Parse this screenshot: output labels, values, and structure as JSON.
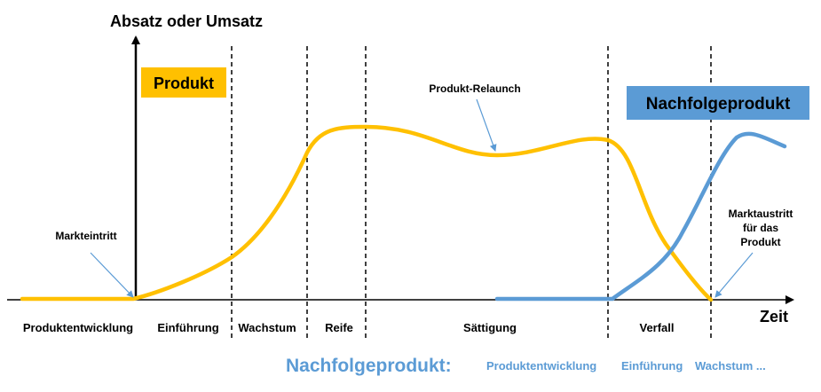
{
  "axis": {
    "y_label": "Absatz oder Umsatz",
    "x_label": "Zeit"
  },
  "labels": {
    "produkt": "Produkt",
    "nachfolgeprodukt": "Nachfolgeprodukt",
    "relaunch": "Produkt-Relaunch",
    "markteintritt": "Markteintritt",
    "marktaustritt_1": "Marktaustritt",
    "marktaustritt_2": "für das",
    "marktaustritt_3": "Produkt"
  },
  "phases": [
    "Produktentwicklung",
    "Einführung",
    "Wachstum",
    "Reife",
    "Sättigung",
    "Verfall"
  ],
  "successor_phases": {
    "title": "Nachfolgeprodukt:",
    "items": [
      "Produktentwicklung",
      "Einführung",
      "Wachstum ..."
    ]
  },
  "colors": {
    "product_curve": "#FFC000",
    "successor_curve": "#5B9BD5",
    "produkt_box": "#FFC000",
    "nachfolge_box": "#5B9BD5",
    "axis": "#000000",
    "annotation_arrow": "#5B9BD5"
  }
}
